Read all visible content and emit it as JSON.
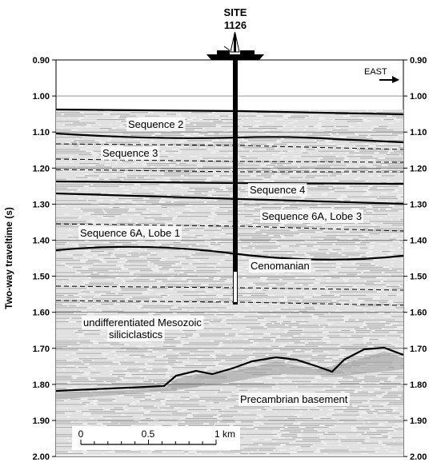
{
  "site": {
    "line1": "SITE",
    "line2": "1126"
  },
  "direction": {
    "label": "EAST"
  },
  "y_axis": {
    "label": "Two-way traveltime (s)",
    "unit": "s",
    "ticks": [
      "0.90",
      "1.00",
      "1.10",
      "1.20",
      "1.30",
      "1.40",
      "1.50",
      "1.60",
      "1.70",
      "1.80",
      "1.90",
      "2.00"
    ]
  },
  "units": [
    {
      "name": "Sequence 2"
    },
    {
      "name": "Sequence 3"
    },
    {
      "name": "Sequence 4"
    },
    {
      "name": "Sequence 6A, Lobe 3"
    },
    {
      "name": "Sequence 6A, Lobe 1"
    },
    {
      "name": "Cenomanian"
    },
    {
      "name": "undifferentiated Mesozoic"
    },
    {
      "name": "siliciclastics"
    },
    {
      "name": "Precambrian basement"
    }
  ],
  "scale_bar": {
    "labels": [
      "0",
      "0.5",
      "1 km"
    ]
  },
  "colors": {
    "ink": "#000000",
    "band_light": "#d6d6d6",
    "band_dark": "#a8a8a8",
    "paper": "#ffffff"
  }
}
